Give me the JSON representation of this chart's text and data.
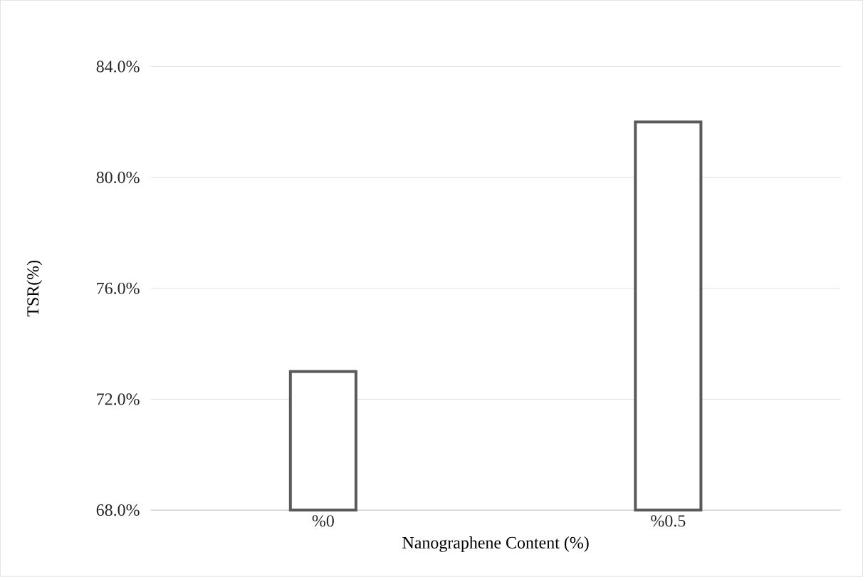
{
  "chart_data": {
    "type": "bar",
    "xlabel": "Nanographene Content (%)",
    "ylabel": "TSR(%)",
    "categories": [
      "%0",
      "%0.5"
    ],
    "values": [
      73.0,
      82.0
    ],
    "color": "#595959",
    "ylim": [
      68,
      84
    ],
    "yticks": [
      {
        "value": 68,
        "label": "68.0%"
      },
      {
        "value": 72,
        "label": "72.0%"
      },
      {
        "value": 76,
        "label": "76.0%"
      },
      {
        "value": 80,
        "label": "80.0%"
      },
      {
        "value": 84,
        "label": "84.0%"
      }
    ],
    "grid": "y"
  }
}
